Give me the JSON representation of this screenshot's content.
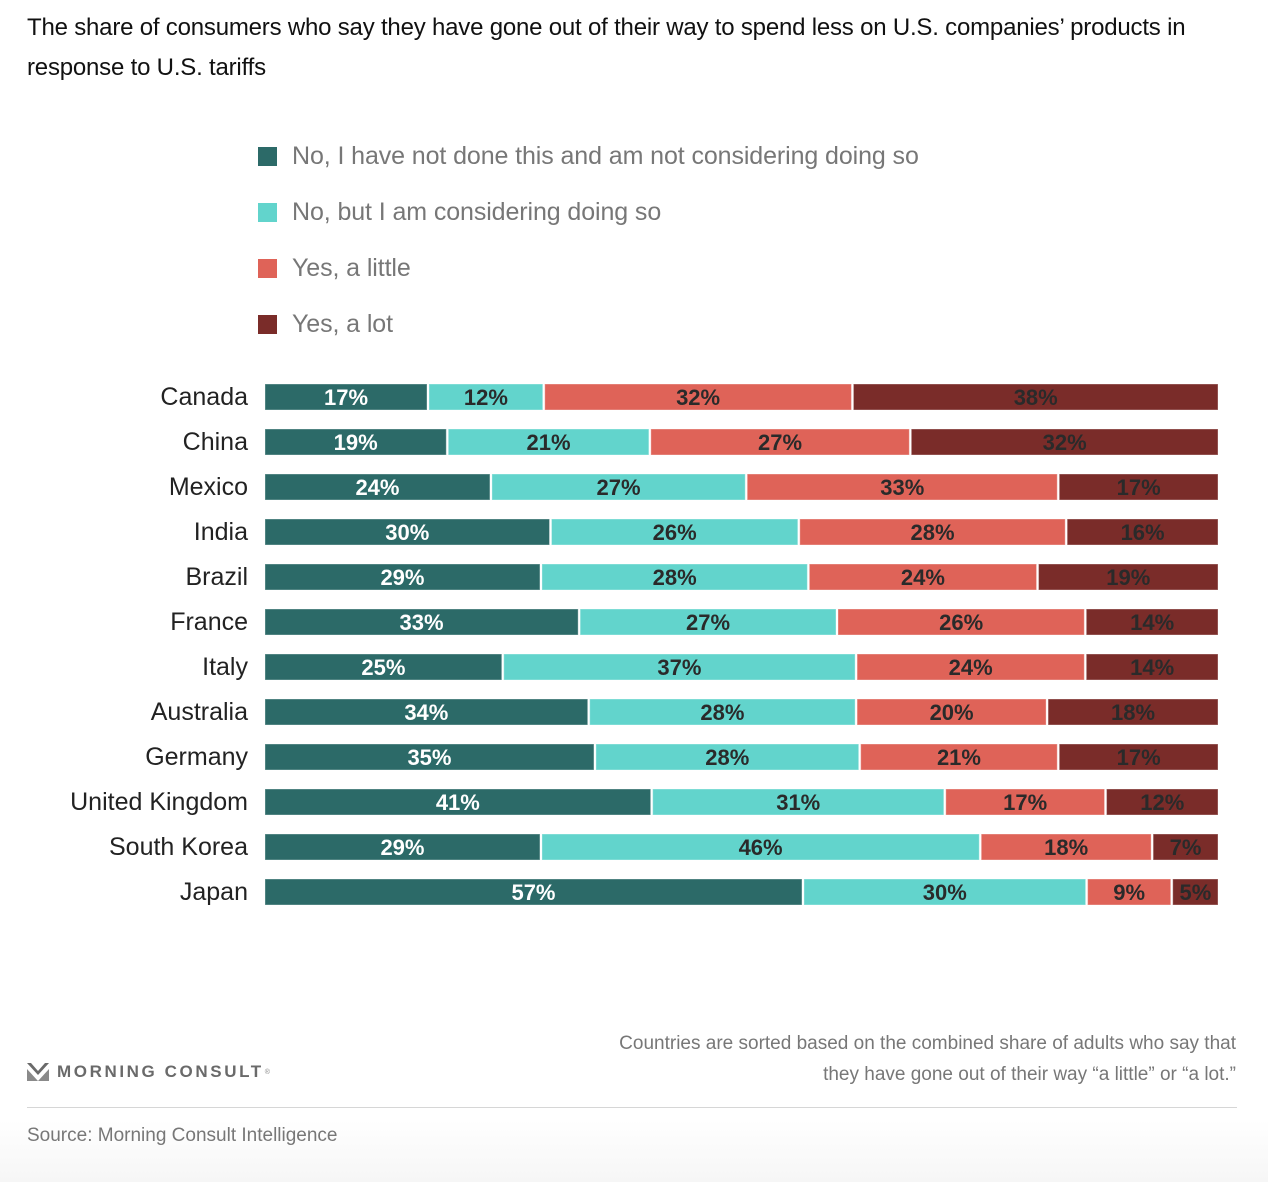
{
  "title": "The share of consumers who say they have gone out of their way to spend less on U.S. companies’ products in response to U.S. tariffs",
  "legend": [
    {
      "label": "No, I have not done this and am not considering doing so",
      "color": "#2c6a68"
    },
    {
      "label": "No, but I am considering doing so",
      "color": "#62d4cc"
    },
    {
      "label": "Yes, a little",
      "color": "#df6358"
    },
    {
      "label": "Yes, a lot",
      "color": "#7a2c29"
    }
  ],
  "chart_data": {
    "type": "bar",
    "orientation": "horizontal",
    "stacked": true,
    "title": "The share of consumers who say they have gone out of their way to spend less on U.S. companies’ products in response to U.S. tariffs",
    "xlabel": "",
    "ylabel": "",
    "xlim": [
      0,
      100
    ],
    "grid": false,
    "legend_position": "top",
    "value_format": "percent",
    "categories": [
      "Canada",
      "China",
      "Mexico",
      "India",
      "Brazil",
      "France",
      "Italy",
      "Australia",
      "Germany",
      "United Kingdom",
      "South Korea",
      "Japan"
    ],
    "series": [
      {
        "name": "No, I have not done this and am not considering doing so",
        "color": "#2c6a68",
        "label_color": "#ffffff",
        "values": [
          17,
          19,
          24,
          30,
          29,
          33,
          25,
          34,
          35,
          41,
          29,
          57
        ]
      },
      {
        "name": "No, but I am considering doing so",
        "color": "#62d4cc",
        "label_color": "#2a2a2a",
        "values": [
          12,
          21,
          27,
          26,
          28,
          27,
          37,
          28,
          28,
          31,
          46,
          30
        ]
      },
      {
        "name": "Yes, a little",
        "color": "#df6358",
        "label_color": "#2a2a2a",
        "values": [
          32,
          27,
          33,
          28,
          24,
          26,
          24,
          20,
          21,
          17,
          18,
          9
        ]
      },
      {
        "name": "Yes, a lot",
        "color": "#7a2c29",
        "label_color": "#2a2a2a",
        "values": [
          38,
          32,
          17,
          16,
          19,
          14,
          14,
          18,
          17,
          12,
          7,
          5
        ]
      }
    ]
  },
  "footnote": {
    "line1": "Countries are sorted based on the combined share of adults who say that",
    "line2": "they have gone out of their way “a little” or “a lot.”"
  },
  "logo": {
    "text": "MORNING CONSULT",
    "tm": "®",
    "icon": "morning-consult-chevron-icon"
  },
  "source": "Source: Morning Consult Intelligence"
}
